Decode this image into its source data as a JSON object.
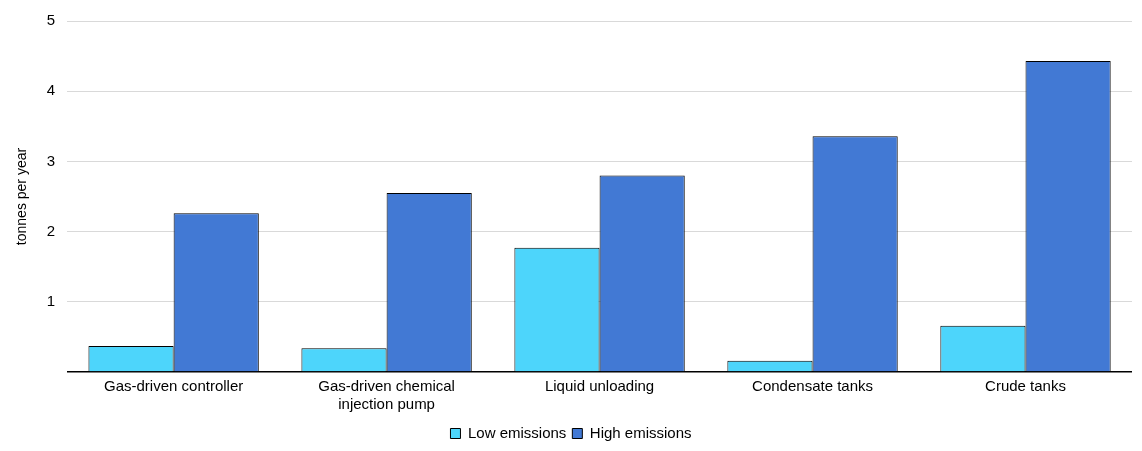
{
  "chart_data": {
    "type": "bar",
    "ylabel": "tonnes per year",
    "categories": [
      "Gas-driven controller",
      "Gas-driven chemical injection pump",
      "Liquid unloading",
      "Condensate tanks",
      "Crude tanks"
    ],
    "series": [
      {
        "name": "Low emissions",
        "color": "#4dd5fb",
        "values": [
          0.37,
          0.34,
          1.77,
          0.16,
          0.66
        ]
      },
      {
        "name": "High emissions",
        "color": "#4279d4",
        "values": [
          2.26,
          2.55,
          2.8,
          3.36,
          4.43
        ]
      }
    ],
    "ylim": [
      0,
      5
    ],
    "yticks": [
      {
        "value": 0,
        "label": null
      },
      1,
      2,
      3,
      4,
      5
    ],
    "grid": "y",
    "legend": "bottom"
  }
}
